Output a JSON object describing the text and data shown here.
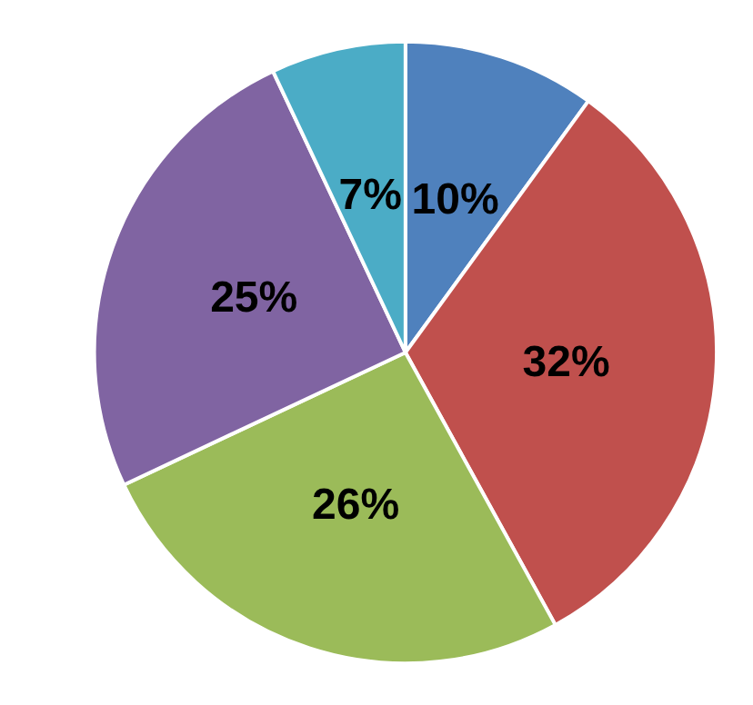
{
  "chart_data": {
    "type": "pie",
    "categories": [
      null,
      null,
      null,
      null,
      null
    ],
    "values": [
      10,
      32,
      26,
      25,
      7
    ],
    "colors": [
      "#4f81bd",
      "#c0504d",
      "#9bbb59",
      "#8064a2",
      "#4bacc6"
    ],
    "value_labels": [
      "10%",
      "32%",
      "26%",
      "25%",
      "7%"
    ]
  }
}
